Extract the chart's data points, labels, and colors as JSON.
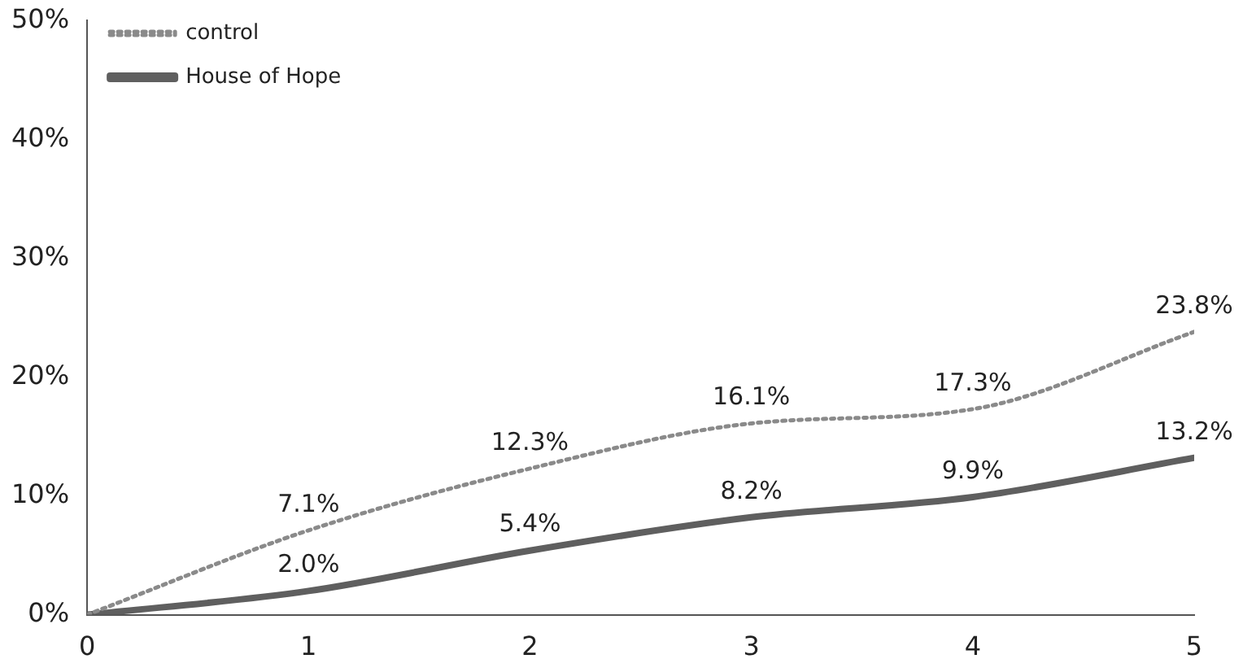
{
  "chart_data": {
    "type": "line",
    "x": [
      0,
      1,
      2,
      3,
      4,
      5
    ],
    "series": [
      {
        "name": "control",
        "color": "#8a8a8a",
        "line_style": "dotted",
        "values": [
          0,
          7.1,
          12.3,
          16.1,
          17.3,
          23.8
        ],
        "value_labels": [
          null,
          "7.1%",
          "12.3%",
          "16.1%",
          "17.3%",
          "23.8%"
        ]
      },
      {
        "name": "House of Hope",
        "color": "#5f5f5f",
        "line_style": "solid",
        "values": [
          0,
          2.0,
          5.4,
          8.2,
          9.9,
          13.2
        ],
        "value_labels": [
          null,
          "2.0%",
          "5.4%",
          "8.2%",
          "9.9%",
          "13.2%"
        ]
      }
    ],
    "xlim": [
      0,
      5
    ],
    "xticks": [
      0,
      1,
      2,
      3,
      4,
      5
    ],
    "ylim": [
      0,
      50
    ],
    "yticks": [
      {
        "value": 0,
        "label": "0%"
      },
      {
        "value": 10,
        "label": "10%"
      },
      {
        "value": 20,
        "label": "20%"
      },
      {
        "value": 30,
        "label": "30%"
      },
      {
        "value": 40,
        "label": "40%"
      },
      {
        "value": 50,
        "label": "50%"
      }
    ],
    "grid": false,
    "legend": "top left",
    "marker": "none"
  }
}
